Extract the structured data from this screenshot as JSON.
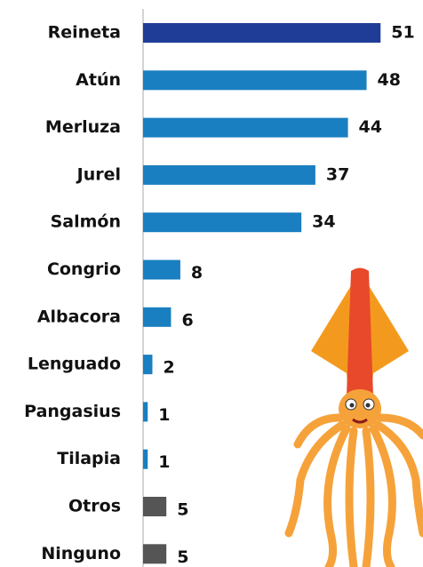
{
  "chart_data": {
    "type": "bar",
    "orientation": "horizontal",
    "categories": [
      "Reineta",
      "Atún",
      "Merluza",
      "Jurel",
      "Salmón",
      "Congrio",
      "Albacora",
      "Lenguado",
      "Pangasius",
      "Tilapia",
      "Otros",
      "Ninguno"
    ],
    "values": [
      51,
      48,
      44,
      37,
      34,
      8,
      6,
      2,
      1,
      1,
      5,
      5
    ],
    "colors": [
      "#1f3c96",
      "#1a7fc0",
      "#1a7fc0",
      "#1a7fc0",
      "#1a7fc0",
      "#1a7fc0",
      "#1a7fc0",
      "#1a7fc0",
      "#1a7fc0",
      "#1a7fc0",
      "#555555",
      "#555555"
    ]
  }
}
